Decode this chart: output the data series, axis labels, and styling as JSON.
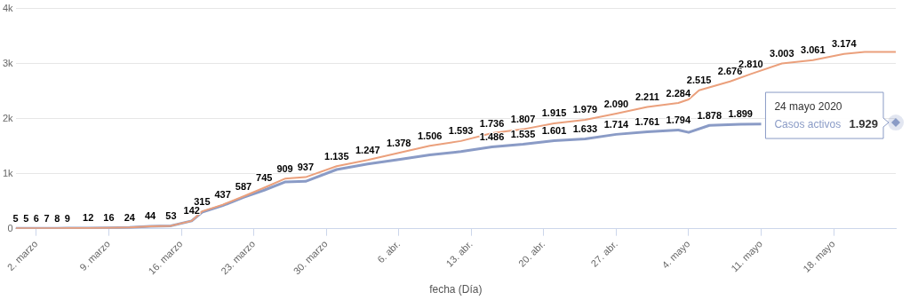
{
  "chart_data": {
    "type": "line",
    "xlabel": "fecha (Día)",
    "x": [
      "2020-02-29",
      "2020-03-01",
      "2020-03-02",
      "2020-03-03",
      "2020-03-04",
      "2020-03-05",
      "2020-03-07",
      "2020-03-09",
      "2020-03-11",
      "2020-03-13",
      "2020-03-15",
      "2020-03-17",
      "2020-03-18",
      "2020-03-20",
      "2020-03-22",
      "2020-03-24",
      "2020-03-26",
      "2020-03-28",
      "2020-03-31",
      "2020-04-03",
      "2020-04-06",
      "2020-04-09",
      "2020-04-12",
      "2020-04-15",
      "2020-04-18",
      "2020-04-21",
      "2020-04-24",
      "2020-04-27",
      "2020-04-30",
      "2020-05-03",
      "2020-05-04",
      "2020-05-05",
      "2020-05-08",
      "2020-05-10",
      "2020-05-13",
      "2020-05-16",
      "2020-05-19",
      "2020-05-21",
      "2020-05-24"
    ],
    "series": [
      {
        "color": "#eba07c",
        "values": [
          5,
          5,
          6,
          7,
          8,
          9,
          12,
          16,
          24,
          44,
          53,
          142,
          315,
          437,
          587,
          745,
          909,
          937,
          1135,
          1247,
          1378,
          1506,
          1593,
          1736,
          1807,
          1915,
          1979,
          2090,
          2211,
          2284,
          2350,
          2515,
          2676,
          2810,
          3003,
          3061,
          3174,
          3210,
          3210
        ],
        "value_labels": [
          "5",
          "5",
          "6",
          "7",
          "8",
          "9",
          "12",
          "16",
          "24",
          "44",
          "53",
          "142",
          "315",
          "437",
          "587",
          "745",
          "909",
          "937",
          "1.135",
          "1.247",
          "1.378",
          "1.506",
          "1.593",
          "1.736",
          "1.807",
          "1.915",
          "1.979",
          "2.090",
          "2.211",
          "2.284",
          null,
          "2.515",
          "2.676",
          "2.810",
          "3.003",
          "3.061",
          "3.174",
          null,
          null
        ]
      },
      {
        "name": "Casos activos",
        "color": "#8a9bc6",
        "x": [
          "2020-02-29",
          "2020-03-01",
          "2020-03-02",
          "2020-03-03",
          "2020-03-04",
          "2020-03-05",
          "2020-03-07",
          "2020-03-09",
          "2020-03-11",
          "2020-03-13",
          "2020-03-15",
          "2020-03-17",
          "2020-03-18",
          "2020-03-20",
          "2020-03-22",
          "2020-03-24",
          "2020-03-26",
          "2020-03-28",
          "2020-03-31",
          "2020-04-03",
          "2020-04-06",
          "2020-04-09",
          "2020-04-12",
          "2020-04-15",
          "2020-04-18",
          "2020-04-21",
          "2020-04-24",
          "2020-04-27",
          "2020-04-30",
          "2020-05-03",
          "2020-05-04",
          "2020-05-06",
          "2020-05-09",
          "2020-05-11",
          "2020-05-13",
          "2020-05-16",
          "2020-05-19",
          "2020-05-21",
          "2020-05-24"
        ],
        "values": [
          5,
          5,
          6,
          7,
          8,
          9,
          12,
          16,
          24,
          44,
          53,
          142,
          300,
          420,
          570,
          700,
          848,
          860,
          1075,
          1175,
          1255,
          1340,
          1400,
          1486,
          1535,
          1601,
          1633,
          1714,
          1761,
          1794,
          1750,
          1878,
          1899,
          1900,
          null,
          null,
          null,
          null,
          1929
        ],
        "value_labels": [
          null,
          null,
          null,
          null,
          null,
          null,
          null,
          null,
          null,
          null,
          null,
          null,
          null,
          null,
          null,
          null,
          null,
          null,
          null,
          null,
          null,
          null,
          null,
          "1.486",
          "1.535",
          "1.601",
          "1.633",
          "1.714",
          "1.761",
          "1.794",
          null,
          "1.878",
          "1.899",
          null,
          null,
          null,
          null,
          null,
          "1.929"
        ]
      }
    ],
    "xlim": [
      "2020-02-29",
      "2020-05-24"
    ],
    "xticks": [
      {
        "value": "2020-03-02",
        "label": "2. marzo"
      },
      {
        "value": "2020-03-09",
        "label": "9. marzo"
      },
      {
        "value": "2020-03-16",
        "label": "16. marzo"
      },
      {
        "value": "2020-03-23",
        "label": "23. marzo"
      },
      {
        "value": "2020-03-30",
        "label": "30. marzo"
      },
      {
        "value": "2020-04-06",
        "label": "6. abr."
      },
      {
        "value": "2020-04-13",
        "label": "13. abr."
      },
      {
        "value": "2020-04-20",
        "label": "20. abr."
      },
      {
        "value": "2020-04-27",
        "label": "27. abr."
      },
      {
        "value": "2020-05-04",
        "label": "4. mayo"
      },
      {
        "value": "2020-05-11",
        "label": "11. mayo"
      },
      {
        "value": "2020-05-18",
        "label": "18. mayo"
      }
    ],
    "ylim": [
      0,
      4000
    ],
    "yticks": [
      {
        "value": 0,
        "label": "0"
      },
      {
        "value": 1000,
        "label": "1k"
      },
      {
        "value": 2000,
        "label": "2k"
      },
      {
        "value": 3000,
        "label": "3k"
      },
      {
        "value": 4000,
        "label": "4k"
      }
    ],
    "annotations": [
      "24 mayo 2020"
    ],
    "grid": "y",
    "legend": false,
    "marker": "none",
    "line_style": "solid"
  }
}
